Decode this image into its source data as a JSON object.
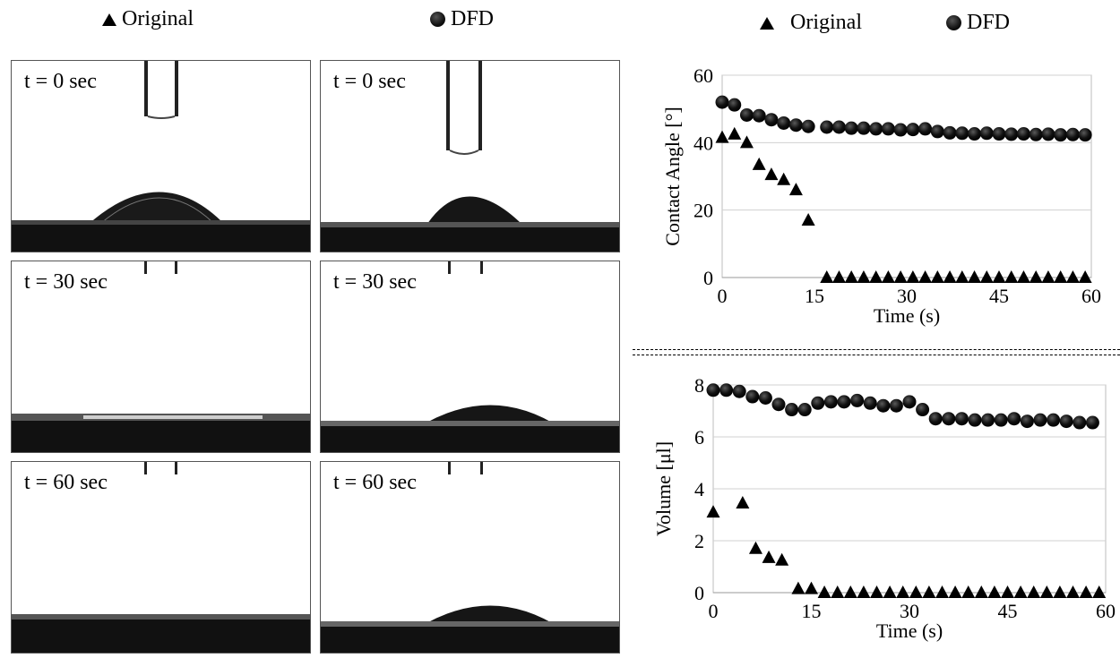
{
  "legend_left": {
    "original": "Original",
    "dfd": "DFD"
  },
  "legend_right": {
    "original": "Original",
    "dfd": "DFD"
  },
  "panels": [
    {
      "label": "t = 0 sec",
      "sample": "original"
    },
    {
      "label": "t = 0 sec",
      "sample": "dfd"
    },
    {
      "label": "t = 30 sec",
      "sample": "original"
    },
    {
      "label": "t = 30 sec",
      "sample": "dfd"
    },
    {
      "label": "t = 60 sec",
      "sample": "original"
    },
    {
      "label": "t = 60 sec",
      "sample": "dfd"
    }
  ],
  "chart_data": [
    {
      "type": "scatter",
      "xlabel": "Time (s)",
      "ylabel": "Contact Angle  [°]",
      "xlim": [
        0,
        60
      ],
      "ylim": [
        0,
        60
      ],
      "xticks": [
        0,
        15,
        30,
        45,
        60
      ],
      "yticks": [
        0,
        20,
        40,
        60
      ],
      "grid": "horizontal",
      "series": [
        {
          "name": "Original",
          "marker": "triangle",
          "x": [
            0,
            2,
            4,
            6,
            8,
            10,
            12,
            14,
            17,
            19,
            21,
            23,
            25,
            27,
            29,
            31,
            33,
            35,
            37,
            39,
            41,
            43,
            45,
            47,
            49,
            51,
            53,
            55,
            57,
            59
          ],
          "y": [
            41.5,
            42.5,
            40,
            33.5,
            30.5,
            29,
            26,
            17,
            0,
            0,
            0,
            0,
            0,
            0,
            0,
            0,
            0,
            0,
            0,
            0,
            0,
            0,
            0,
            0,
            0,
            0,
            0,
            0,
            0,
            0
          ]
        },
        {
          "name": "DFD",
          "marker": "circle",
          "x": [
            0,
            2,
            4,
            6,
            8,
            10,
            12,
            14,
            17,
            19,
            21,
            23,
            25,
            27,
            29,
            31,
            33,
            35,
            37,
            39,
            41,
            43,
            45,
            47,
            49,
            51,
            53,
            55,
            57,
            59
          ],
          "y": [
            52,
            51.2,
            48.2,
            48,
            46.8,
            45.8,
            45.2,
            44.8,
            44.6,
            44.6,
            44.3,
            44.3,
            44.1,
            44.1,
            43.8,
            43.9,
            44.1,
            43.3,
            42.9,
            42.8,
            42.6,
            42.8,
            42.6,
            42.5,
            42.6,
            42.4,
            42.5,
            42.3,
            42.4,
            42.3
          ]
        }
      ]
    },
    {
      "type": "scatter",
      "xlabel": "Time (s)",
      "ylabel": "Volume [μl]",
      "xlim": [
        0,
        60
      ],
      "ylim": [
        0,
        8
      ],
      "xticks": [
        0,
        15,
        30,
        45,
        60
      ],
      "yticks": [
        0,
        2,
        4,
        6,
        8
      ],
      "grid": "horizontal",
      "series": [
        {
          "name": "Original",
          "marker": "triangle",
          "x": [
            0,
            4.5,
            6.5,
            8.5,
            10.5,
            13,
            15,
            17,
            19,
            21,
            23,
            25,
            27,
            29,
            31,
            33,
            35,
            37,
            39,
            41,
            43,
            45,
            47,
            49,
            51,
            53,
            55,
            57,
            59
          ],
          "y": [
            3.1,
            3.45,
            1.7,
            1.35,
            1.25,
            0.15,
            0.15,
            0,
            0,
            0,
            0,
            0,
            0,
            0,
            0,
            0,
            0,
            0,
            0,
            0,
            0,
            0,
            0,
            0,
            0,
            0,
            0,
            0,
            0
          ]
        },
        {
          "name": "DFD",
          "marker": "circle",
          "x": [
            0,
            2,
            4,
            6,
            8,
            10,
            12,
            14,
            16,
            18,
            20,
            22,
            24,
            26,
            28,
            30,
            32,
            34,
            36,
            38,
            40,
            42,
            44,
            46,
            48,
            50,
            52,
            54,
            56,
            58
          ],
          "y": [
            7.8,
            7.8,
            7.75,
            7.55,
            7.5,
            7.25,
            7.05,
            7.05,
            7.3,
            7.35,
            7.35,
            7.4,
            7.3,
            7.2,
            7.2,
            7.35,
            7.05,
            6.7,
            6.7,
            6.7,
            6.65,
            6.65,
            6.65,
            6.7,
            6.6,
            6.65,
            6.65,
            6.6,
            6.55,
            6.55
          ]
        }
      ]
    }
  ]
}
